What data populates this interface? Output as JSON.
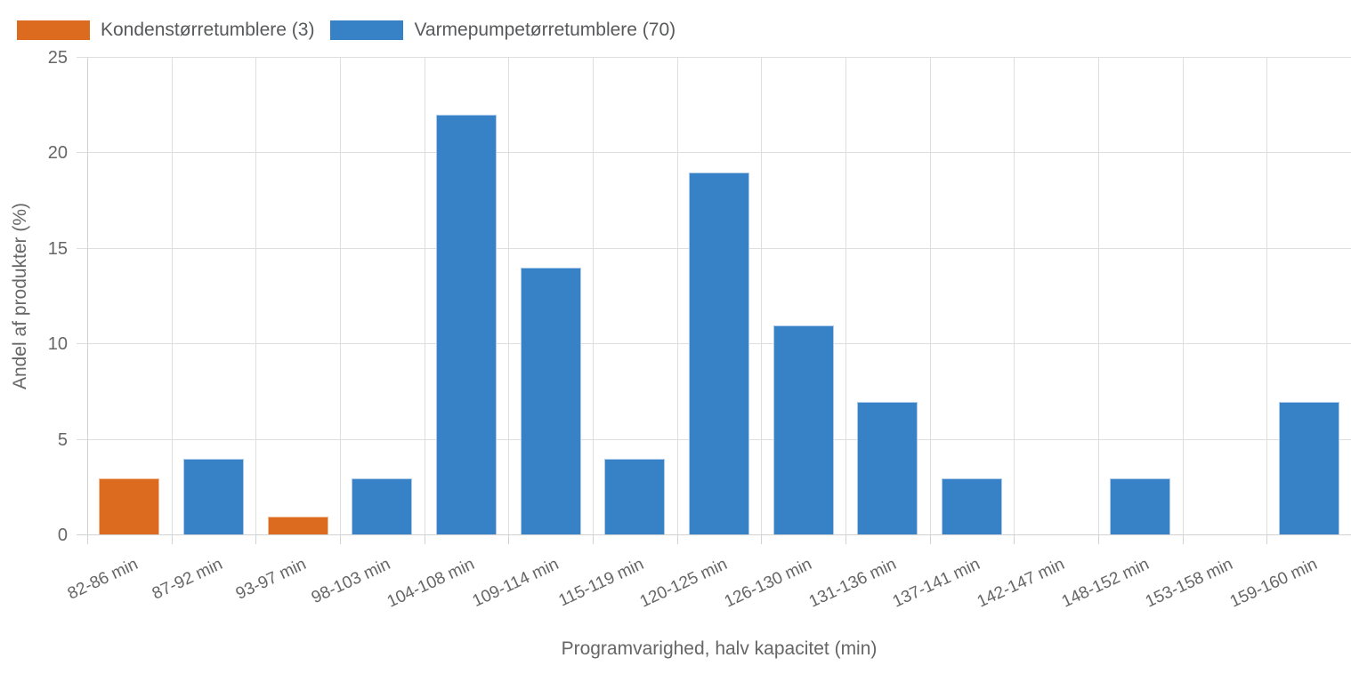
{
  "colors": {
    "background": "#FFFFFF",
    "grid": "#DEDEDE",
    "axis": "#D2D2D2",
    "tick_text": "#666666",
    "title_text": "#666666",
    "legend_text": "#58595B",
    "orange": "#DC6B20",
    "blue": "#3781C7"
  },
  "chart_data": {
    "type": "bar",
    "title": "",
    "categories": [
      "82-86 min",
      "87-92 min",
      "93-97 min",
      "98-103 min",
      "104-108 min",
      "109-114 min",
      "115-119 min",
      "120-125 min",
      "126-130 min",
      "131-136 min",
      "137-141 min",
      "142-147 min",
      "148-152 min",
      "153-158 min",
      "159-160 min"
    ],
    "series": [
      {
        "name": "Kondenstørretumblere (3)",
        "color": "#DC6B20",
        "border_color": "#F0BD94",
        "values": [
          3,
          null,
          1,
          null,
          null,
          null,
          null,
          null,
          null,
          null,
          null,
          null,
          null,
          null,
          null
        ]
      },
      {
        "name": "Varmepumpetørretumblere (70)",
        "color": "#3781C7",
        "border_color": "#AECBEA",
        "values": [
          null,
          4,
          null,
          3,
          22,
          14,
          4,
          19,
          11,
          7,
          3,
          null,
          3,
          null,
          7
        ]
      }
    ],
    "xlabel": "Programvarighed, halv kapacitet (min)",
    "ylabel": "Andel af produkter (%)",
    "ylim": [
      0,
      25
    ],
    "yticks": [
      0,
      5,
      10,
      15,
      20,
      25
    ],
    "grid": true,
    "legend_position": "top-left",
    "x_tick_rotation_deg": -25
  }
}
